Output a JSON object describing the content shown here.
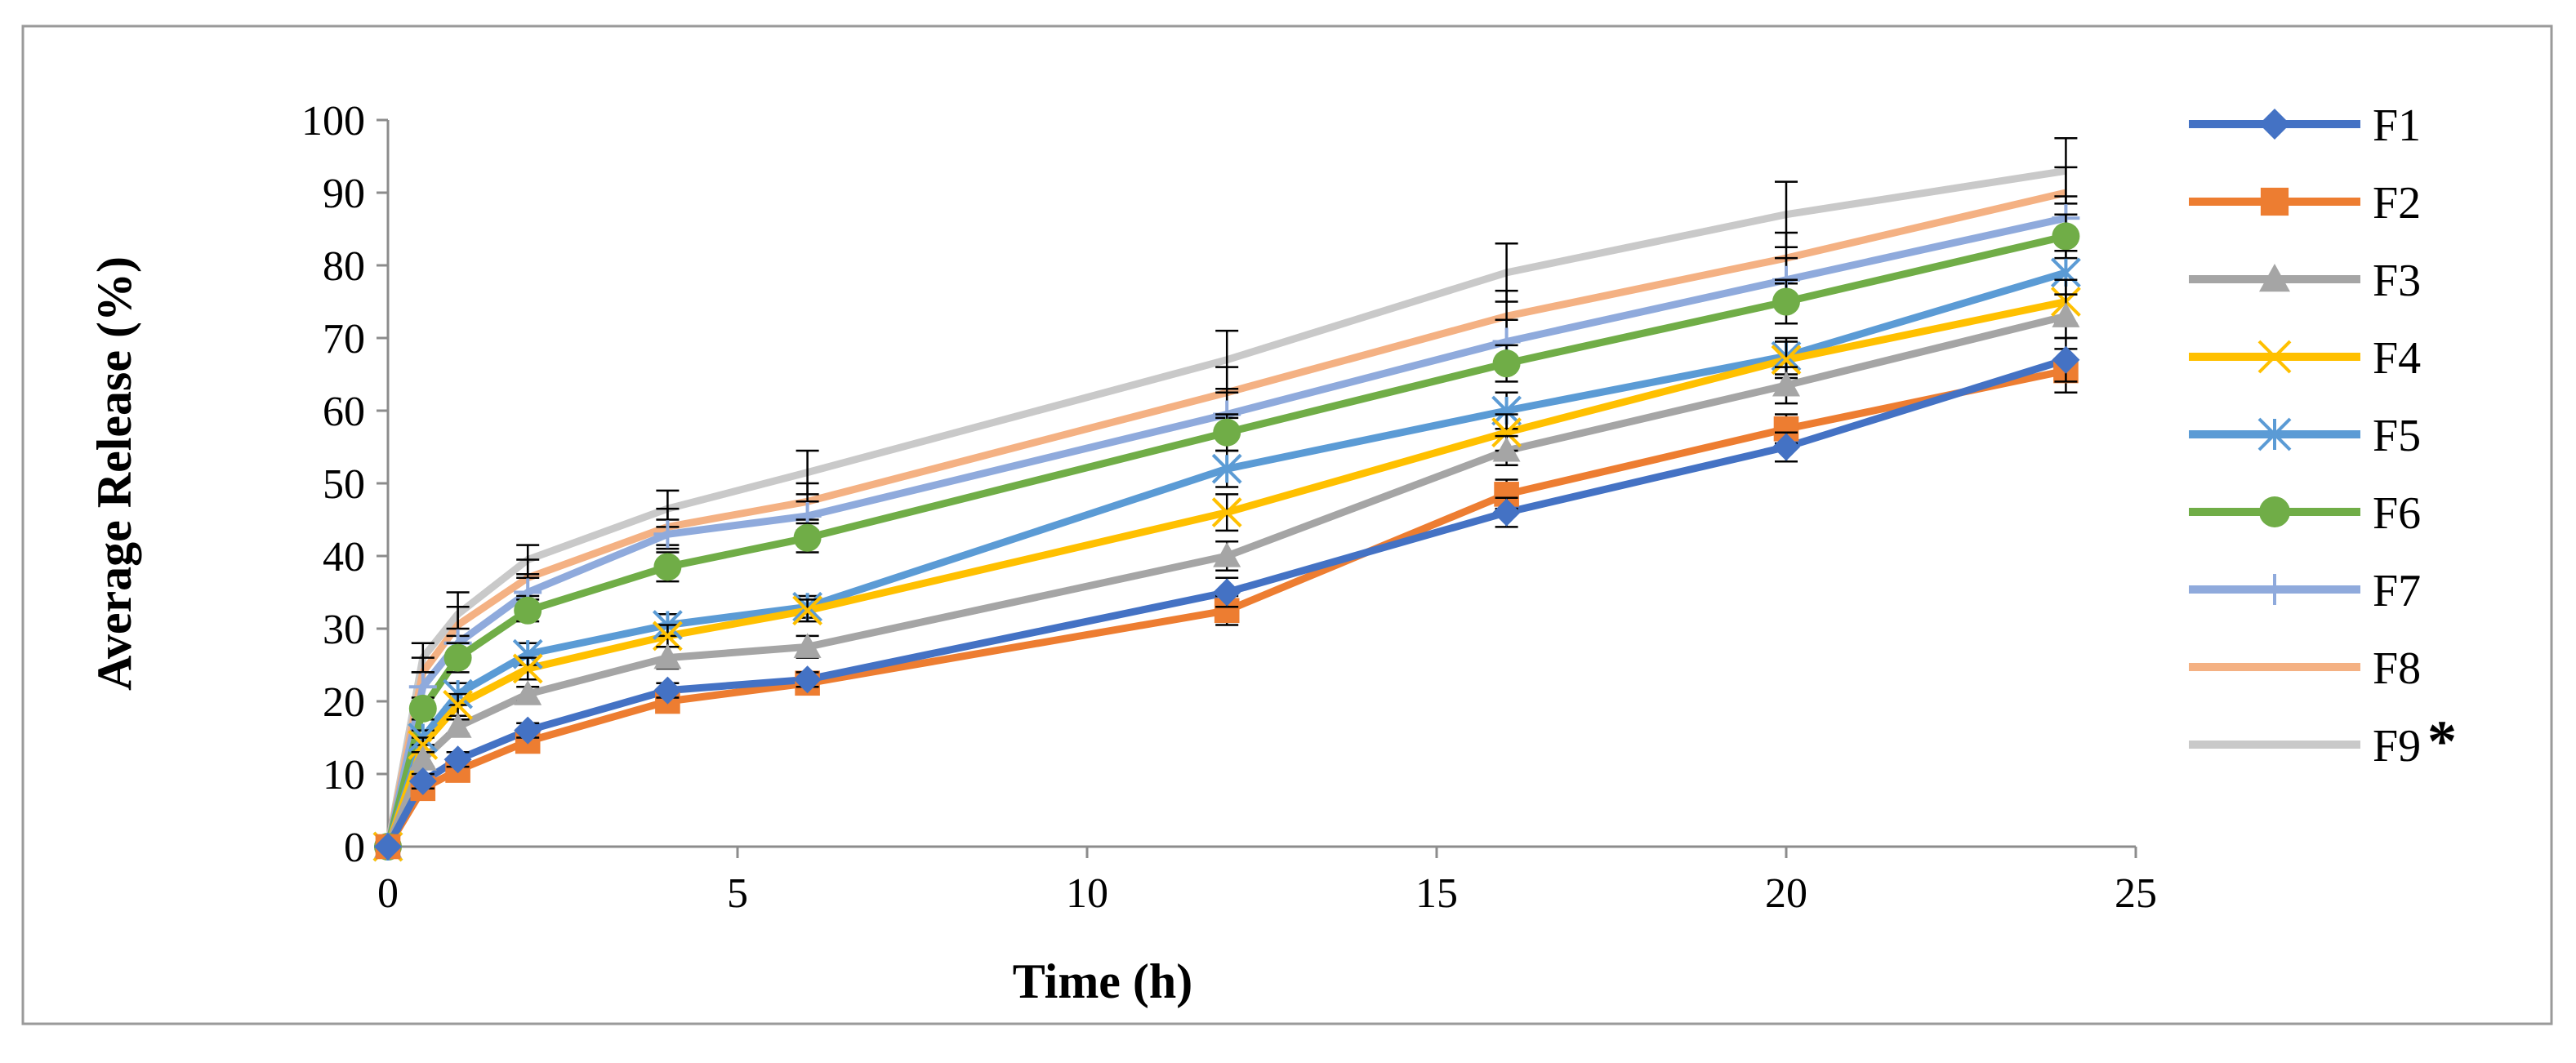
{
  "chart_data": {
    "type": "line",
    "title": "",
    "xlabel": "Time (h)",
    "ylabel": "Average Release (%)",
    "xlim": [
      0,
      25
    ],
    "ylim": [
      0,
      100
    ],
    "x_ticks": [
      0,
      5,
      10,
      15,
      20,
      25
    ],
    "y_ticks": [
      0,
      10,
      20,
      30,
      40,
      50,
      60,
      70,
      80,
      90,
      100
    ],
    "grid": false,
    "legend_position": "right",
    "x": [
      0,
      0.5,
      1,
      2,
      4,
      6,
      12,
      16,
      20,
      24
    ],
    "series": [
      {
        "name": "F1",
        "color": "#4472C4",
        "marker": "diamond",
        "values": [
          0,
          9,
          12,
          16,
          21.5,
          23,
          35,
          46,
          55,
          67
        ],
        "errors": [
          0,
          1,
          1,
          1,
          1,
          1,
          2,
          2,
          2,
          3
        ]
      },
      {
        "name": "F2",
        "color": "#ED7D31",
        "marker": "square",
        "values": [
          0,
          8,
          10.5,
          14.5,
          20,
          22.5,
          32.5,
          48.5,
          57.5,
          65.5
        ],
        "errors": [
          0,
          1,
          1,
          1,
          1,
          1,
          2,
          2,
          2,
          3
        ]
      },
      {
        "name": "F3",
        "color": "#A5A5A5",
        "marker": "triangle",
        "values": [
          0,
          12,
          16.5,
          21,
          26,
          27.5,
          40,
          54.5,
          63.5,
          73
        ],
        "errors": [
          0,
          1,
          1,
          1,
          1.5,
          1.5,
          2,
          2,
          2.5,
          3
        ]
      },
      {
        "name": "F4",
        "color": "#FFC000",
        "marker": "x",
        "values": [
          0,
          14,
          19.5,
          24.5,
          29,
          32.5,
          46,
          57,
          67,
          75
        ],
        "errors": [
          0,
          1,
          1.5,
          1.5,
          1.5,
          1.5,
          2.5,
          2.5,
          2.5,
          3
        ]
      },
      {
        "name": "F5",
        "color": "#5B9BD5",
        "marker": "asterisk",
        "values": [
          0,
          15,
          21,
          26.5,
          30.5,
          33,
          52,
          60,
          67.5,
          79
        ],
        "errors": [
          0,
          1,
          1.5,
          1.5,
          1.5,
          1.5,
          2.5,
          2.5,
          2.5,
          3
        ]
      },
      {
        "name": "F6",
        "color": "#70AD47",
        "marker": "circle",
        "values": [
          0,
          19,
          26,
          32.5,
          38.5,
          42.5,
          57,
          66.5,
          75,
          84
        ],
        "errors": [
          0,
          1.5,
          2,
          1.5,
          2,
          2,
          2.5,
          2.5,
          3,
          3
        ]
      },
      {
        "name": "F7",
        "color": "#8FAADC",
        "marker": "plus",
        "values": [
          0,
          22,
          28,
          35,
          43,
          45.5,
          59.5,
          69.5,
          78,
          86.5
        ],
        "errors": [
          0,
          2,
          2,
          2,
          2,
          2,
          3,
          3,
          3,
          3
        ]
      },
      {
        "name": "F8",
        "color": "#F4B183",
        "marker": "none",
        "values": [
          0,
          24,
          30.5,
          37,
          44,
          47.5,
          62.5,
          73,
          81,
          90
        ],
        "errors": [
          0,
          2,
          2.5,
          2.5,
          2.5,
          2.5,
          3.5,
          3.5,
          3.5,
          3.5
        ]
      },
      {
        "name": "F9",
        "color": "#C9C9C9",
        "marker": "none",
        "values": [
          0,
          26,
          32,
          39.5,
          46.5,
          51.5,
          67,
          79,
          87,
          93
        ],
        "errors": [
          0,
          2,
          3,
          2,
          2.5,
          3,
          4,
          4,
          4.5,
          4.5
        ]
      }
    ],
    "legend_annotation": "*"
  }
}
